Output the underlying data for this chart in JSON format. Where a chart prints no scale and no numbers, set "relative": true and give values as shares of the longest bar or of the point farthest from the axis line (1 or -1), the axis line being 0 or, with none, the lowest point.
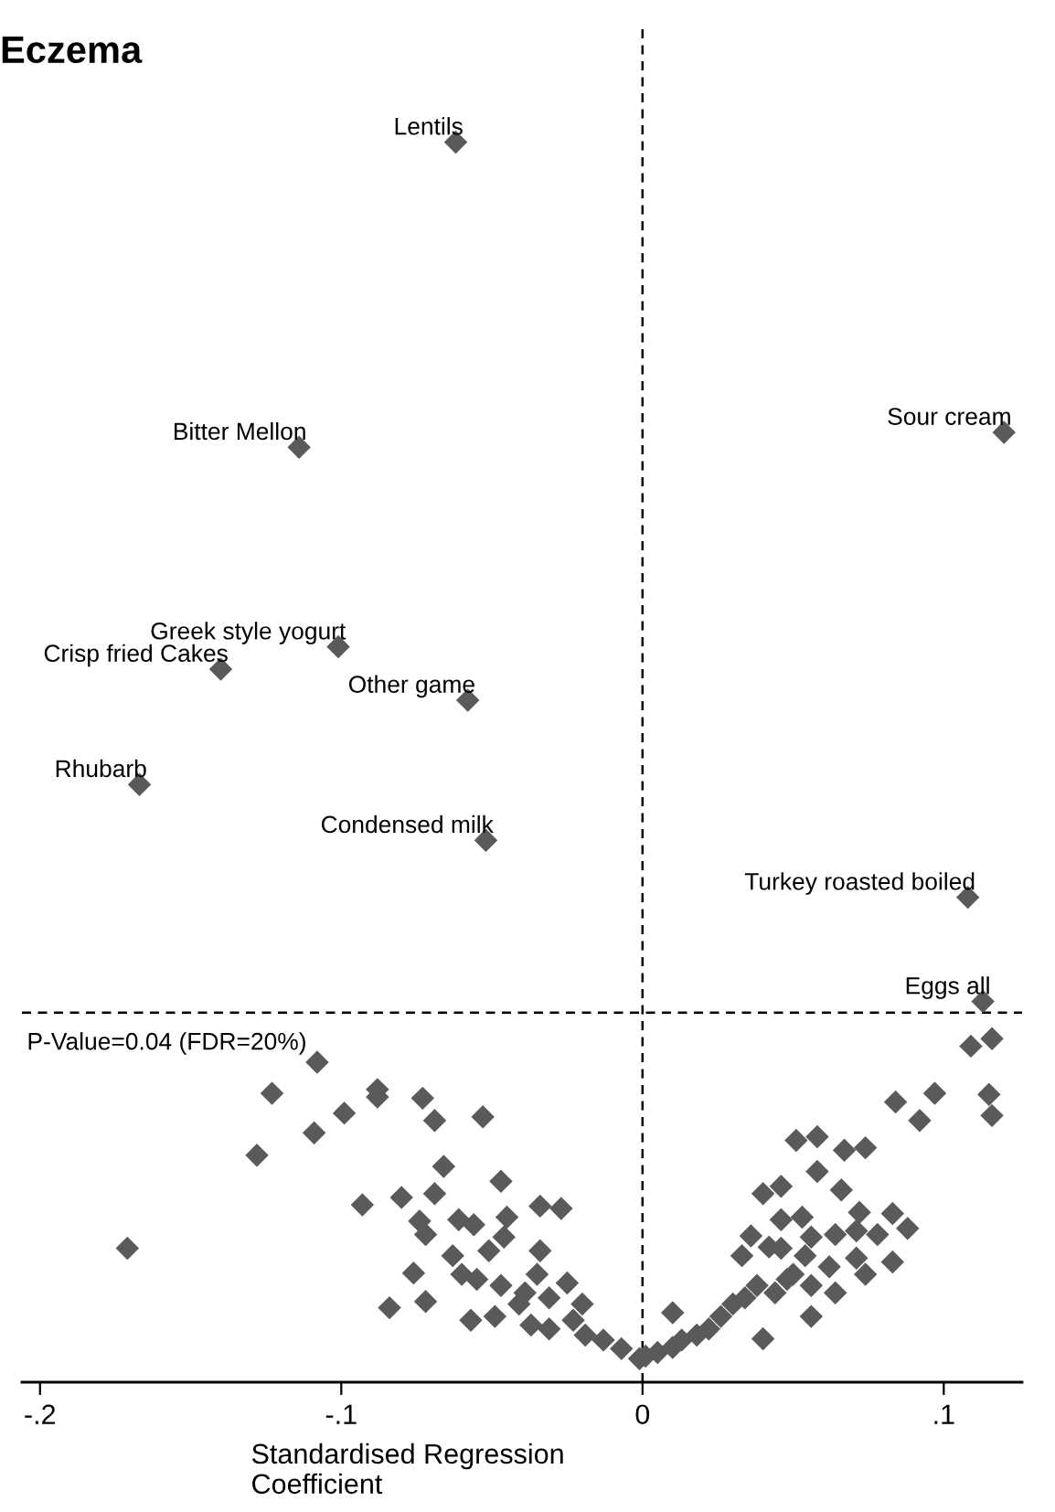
{
  "chart_data": {
    "type": "scatter",
    "title": "Eczema",
    "xlabel": "Standardised Regression\nCoefficient",
    "relative": true,
    "marker": "diamond",
    "grid": false,
    "tick_labels": "x",
    "xlim": [
      -0.206,
      0.126
    ],
    "xticks": [
      {
        "value": -0.2,
        "label": "-.2"
      },
      {
        "value": -0.1,
        "label": "-.1"
      },
      0,
      {
        "value": 0.1,
        "label": ".1"
      }
    ],
    "ref_lines": [
      {
        "axis": "x",
        "value": 0,
        "line_style": "dashed",
        "color": "#000000"
      },
      {
        "axis": "y",
        "value": 0.298,
        "line_style": "dashed",
        "color": "#000000"
      }
    ],
    "annotations": [
      "P-Value=0.04 (FDR=20%)",
      {
        "text": "Lentils",
        "x": -0.062,
        "y": 1.0
      },
      {
        "text": "Bitter Mellon",
        "x": -0.114,
        "y": 0.754
      },
      {
        "text": "Sour cream",
        "x": 0.12,
        "y": 0.766
      },
      {
        "text": "Greek style yogurt",
        "x": -0.101,
        "y": 0.593
      },
      {
        "text": "Crisp fried Cakes",
        "x": -0.14,
        "y": 0.575
      },
      {
        "text": "Other game",
        "x": -0.058,
        "y": 0.55
      },
      {
        "text": "Rhubarb",
        "x": -0.167,
        "y": 0.482
      },
      {
        "text": "Condensed milk",
        "x": -0.052,
        "y": 0.437
      },
      {
        "text": "Turkey roasted boiled",
        "x": 0.108,
        "y": 0.391
      },
      {
        "text": "Eggs all",
        "x": 0.113,
        "y": 0.307
      }
    ],
    "series": [
      {
        "color": "#5a5a5a",
        "x": [
          -0.062,
          -0.114,
          0.12,
          -0.101,
          -0.14,
          -0.058,
          -0.167,
          -0.052,
          0.108,
          0.113,
          -0.171,
          -0.128,
          -0.123,
          -0.109,
          -0.108,
          -0.099,
          -0.088,
          -0.088,
          -0.073,
          -0.069,
          -0.053,
          -0.066,
          -0.047,
          -0.093,
          -0.08,
          -0.069,
          -0.074,
          -0.072,
          -0.061,
          -0.056,
          -0.045,
          -0.046,
          -0.034,
          -0.027,
          -0.034,
          -0.076,
          -0.072,
          -0.084,
          -0.063,
          -0.06,
          -0.051,
          -0.057,
          -0.049,
          -0.041,
          -0.035,
          -0.025,
          -0.02,
          -0.037,
          -0.031,
          -0.023,
          -0.019,
          -0.013,
          -0.007,
          -0.001,
          -0.055,
          -0.047,
          -0.039,
          -0.031,
          0.109,
          0.116,
          0.115,
          0.116,
          0.084,
          0.092,
          0.097,
          0.051,
          0.058,
          0.067,
          0.074,
          0.058,
          0.066,
          0.04,
          0.046,
          0.072,
          0.046,
          0.053,
          0.083,
          0.088,
          0.036,
          0.033,
          0.042,
          0.046,
          0.056,
          0.064,
          0.071,
          0.078,
          0.062,
          0.071,
          0.074,
          0.083,
          0.056,
          0.064,
          0.056,
          0.04,
          0.01,
          0.05,
          0.044,
          0.034,
          0.026,
          0.018,
          0.01,
          0.001,
          0.054,
          0.048,
          0.038,
          0.03,
          0.022,
          0.013,
          0.005
        ],
        "values": [
          1.0,
          0.754,
          0.766,
          0.593,
          0.575,
          0.55,
          0.482,
          0.437,
          0.391,
          0.307,
          0.108,
          0.183,
          0.233,
          0.201,
          0.258,
          0.217,
          0.236,
          0.23,
          0.229,
          0.211,
          0.214,
          0.174,
          0.162,
          0.143,
          0.149,
          0.152,
          0.13,
          0.119,
          0.131,
          0.127,
          0.133,
          0.117,
          0.142,
          0.14,
          0.106,
          0.088,
          0.065,
          0.06,
          0.102,
          0.087,
          0.106,
          0.05,
          0.053,
          0.063,
          0.087,
          0.08,
          0.063,
          0.046,
          0.043,
          0.05,
          0.038,
          0.034,
          0.027,
          0.019,
          0.083,
          0.078,
          0.072,
          0.068,
          0.271,
          0.277,
          0.232,
          0.215,
          0.226,
          0.211,
          0.233,
          0.195,
          0.198,
          0.187,
          0.189,
          0.17,
          0.155,
          0.152,
          0.158,
          0.137,
          0.131,
          0.133,
          0.136,
          0.124,
          0.118,
          0.102,
          0.109,
          0.108,
          0.117,
          0.119,
          0.122,
          0.119,
          0.093,
          0.1,
          0.087,
          0.097,
          0.078,
          0.072,
          0.053,
          0.035,
          0.056,
          0.087,
          0.072,
          0.068,
          0.053,
          0.038,
          0.028,
          0.021,
          0.102,
          0.083,
          0.078,
          0.063,
          0.043,
          0.034,
          0.024
        ]
      }
    ]
  }
}
